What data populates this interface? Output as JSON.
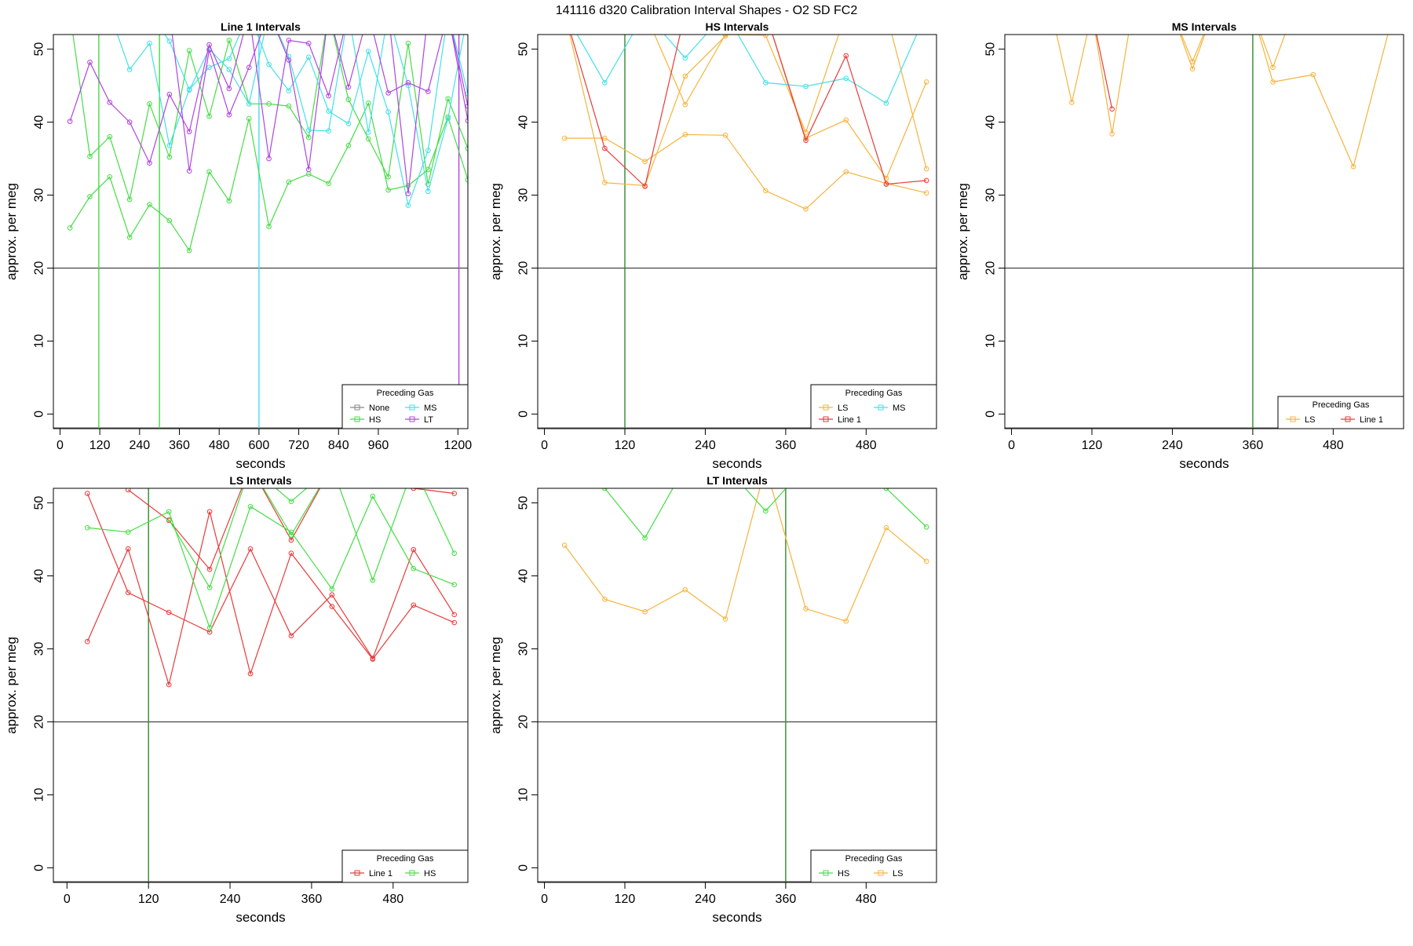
{
  "figure_title": "141116   d320   Calibration Interval Shapes - O2 SD FC2",
  "colors": {
    "None": "#888888",
    "HS": "#44dd44",
    "MS": "#44e0e8",
    "LT": "#b044e0",
    "LS": "#f5b43c",
    "Line 1": "#e83a3a",
    "HS_vline": "#2e8b2e",
    "axis": "#000000",
    "hline": "#444444"
  },
  "chart_data": [
    {
      "id": "line1",
      "type": "line",
      "title": "Line 1 Intervals",
      "xlabel": "seconds",
      "ylabel": "approx. per meg",
      "xlim": [
        -20,
        1230
      ],
      "ylim": [
        -2,
        52
      ],
      "xticks": [
        0,
        120,
        240,
        360,
        480,
        600,
        720,
        840,
        960,
        1200
      ],
      "yticks": [
        0,
        10,
        20,
        30,
        40,
        50
      ],
      "hline": 20,
      "vlines": [
        {
          "x": 117,
          "gas": "HS"
        },
        {
          "x": 300,
          "gas": "HS"
        },
        {
          "x": 600,
          "gas": "MS"
        },
        {
          "x": 1203,
          "gas": "LT"
        }
      ],
      "legend": {
        "title": "Preceding Gas",
        "position": "bottom-right",
        "ncol": 2,
        "entries": [
          "None",
          "MS",
          "HS",
          "LT"
        ]
      },
      "series": [
        {
          "name": "HS",
          "x": [
            30,
            90,
            150,
            210,
            270,
            330,
            390,
            450,
            510,
            570,
            630,
            690,
            750,
            810,
            870,
            930,
            990,
            1050,
            1110,
            1170,
            1230
          ],
          "y": [
            25.5,
            29.8,
            32.5,
            24.2,
            28.7,
            26.5,
            22.4,
            33.2,
            29.2,
            40.5,
            25.7,
            31.8,
            32.9,
            31.6,
            36.8,
            42.6,
            30.7,
            31.3,
            33.5,
            40.7,
            32.1
          ]
        },
        {
          "name": "HS",
          "x": [
            30,
            90,
            150,
            210,
            270,
            330,
            390,
            450,
            510,
            570,
            630,
            690,
            750,
            810,
            870,
            930,
            990,
            1050,
            1110,
            1170,
            1230
          ],
          "y": [
            55,
            35.3,
            38.0,
            29.4,
            42.5,
            35.2,
            49.8,
            40.8,
            51.2,
            42.5,
            42.5,
            42.2,
            37.9,
            55,
            43.1,
            37.7,
            32.5,
            50.8,
            31.5,
            43.2,
            36.4
          ]
        },
        {
          "name": "MS",
          "x": [
            150,
            210,
            270,
            330,
            390,
            450,
            510,
            570,
            630,
            690,
            750,
            810,
            870,
            930,
            990,
            1050,
            1110,
            1170,
            1230
          ],
          "y": [
            55,
            47.2,
            50.8,
            36.8,
            44.5,
            47.5,
            48.7,
            55,
            47.9,
            44.3,
            48.9,
            41.5,
            39.8,
            49.7,
            41.4,
            28.6,
            36.1,
            55,
            43.9
          ]
        },
        {
          "name": "MS",
          "x": [
            270,
            330,
            390,
            450,
            510,
            570,
            630,
            690,
            750,
            810,
            870,
            930,
            990,
            1050,
            1110,
            1170,
            1230
          ],
          "y": [
            55,
            51.1,
            44.4,
            50.0,
            47.2,
            42.5,
            55,
            49.0,
            38.9,
            38.8,
            55,
            38.6,
            55,
            45.0,
            30.5,
            40.5,
            55
          ]
        },
        {
          "name": "LT",
          "x": [
            30,
            90,
            150,
            210,
            270,
            330,
            390,
            450,
            510,
            570,
            630,
            690,
            750,
            810,
            870,
            930,
            990,
            1050,
            1110,
            1170,
            1230
          ],
          "y": [
            40.1,
            48.2,
            42.7,
            40.0,
            34.4,
            43.8,
            38.7,
            50.6,
            44.6,
            55,
            35.0,
            51.2,
            50.8,
            43.6,
            55,
            55,
            44.0,
            45.4,
            44.2,
            55,
            42.2
          ]
        },
        {
          "name": "LT",
          "x": [
            330,
            390,
            450,
            510,
            570,
            630,
            690,
            750,
            810,
            870,
            930,
            990,
            1050,
            1110,
            1170,
            1230
          ],
          "y": [
            55,
            33.3,
            49.9,
            41.0,
            47.5,
            55,
            48.5,
            33.5,
            55,
            44.8,
            55,
            55,
            30.2,
            55,
            55,
            40.2
          ]
        }
      ]
    },
    {
      "id": "hs",
      "type": "line",
      "title": "HS Intervals",
      "xlabel": "seconds",
      "ylabel": "approx. per meg",
      "xlim": [
        -10,
        585
      ],
      "ylim": [
        -2,
        52
      ],
      "xticks": [
        0,
        120,
        240,
        360,
        480
      ],
      "yticks": [
        0,
        10,
        20,
        30,
        40,
        50
      ],
      "hline": 20,
      "vlines": [
        {
          "x": 120,
          "gas": "HS_vline"
        }
      ],
      "legend": {
        "title": "Preceding Gas",
        "position": "bottom-right",
        "ncol": 2,
        "entries": [
          "LS",
          "MS",
          "Line 1"
        ]
      },
      "series": [
        {
          "name": "LS",
          "x": [
            30,
            90,
            150,
            210,
            270,
            330,
            390,
            450,
            510,
            570
          ],
          "y": [
            37.8,
            37.8,
            34.6,
            38.3,
            38.2,
            30.6,
            28.1,
            33.2,
            31.6,
            30.3
          ]
        },
        {
          "name": "LS",
          "x": [
            30,
            90,
            150,
            210,
            270,
            330,
            390,
            450,
            510,
            570
          ],
          "y": [
            55,
            31.7,
            31.3,
            46.3,
            51.8,
            55,
            37.8,
            40.3,
            32.3,
            45.5
          ]
        },
        {
          "name": "LS",
          "x": [
            150,
            210,
            270,
            330,
            390,
            450,
            510,
            570
          ],
          "y": [
            55,
            42.4,
            52.0,
            51.9,
            38.6,
            55,
            55,
            33.6
          ]
        },
        {
          "name": "MS",
          "x": [
            30,
            90,
            150,
            210,
            270,
            330,
            390,
            450,
            510,
            570
          ],
          "y": [
            55,
            45.4,
            55,
            48.8,
            55,
            45.4,
            44.9,
            46.0,
            42.6,
            55
          ]
        },
        {
          "name": "Line 1",
          "x": [
            30,
            90,
            150,
            210,
            270,
            330,
            390,
            450,
            510,
            570
          ],
          "y": [
            55,
            36.4,
            31.2,
            55,
            55,
            55,
            37.5,
            49.1,
            31.5,
            32.0
          ]
        }
      ]
    },
    {
      "id": "ms",
      "type": "line",
      "title": "MS Intervals",
      "xlabel": "seconds",
      "ylabel": "approx. per meg",
      "xlim": [
        -10,
        585
      ],
      "ylim": [
        -2,
        52
      ],
      "xticks": [
        0,
        120,
        240,
        360,
        480
      ],
      "yticks": [
        0,
        10,
        20,
        30,
        40,
        50
      ],
      "hline": 20,
      "vlines": [
        {
          "x": 360,
          "gas": "HS_vline"
        }
      ],
      "legend": {
        "title": "Preceding Gas",
        "position": "bottom-right",
        "ncol": 2,
        "entries": [
          "LS",
          "Line 1"
        ]
      },
      "series": [
        {
          "name": "LS",
          "x": [
            60,
            90,
            120,
            150,
            180,
            240,
            270,
            300,
            360,
            390,
            450,
            510,
            570
          ],
          "y": [
            55,
            42.7,
            55,
            38.4,
            55,
            55,
            47.3,
            55,
            55,
            45.5,
            46.5,
            33.9,
            55
          ]
        },
        {
          "name": "LS",
          "x": [
            240,
            270,
            300,
            360,
            390,
            420,
            450
          ],
          "y": [
            55,
            48.3,
            55,
            55,
            47.5,
            55,
            55
          ]
        },
        {
          "name": "Line 1",
          "x": [
            120,
            150
          ],
          "y": [
            55,
            41.8
          ]
        }
      ]
    },
    {
      "id": "ls",
      "type": "line",
      "title": "LS Intervals",
      "xlabel": "seconds",
      "ylabel": "approx. per meg",
      "xlim": [
        -20,
        590
      ],
      "ylim": [
        -2,
        52
      ],
      "xticks": [
        0,
        120,
        240,
        360,
        480
      ],
      "yticks": [
        0,
        10,
        20,
        30,
        40,
        50
      ],
      "hline": 20,
      "vlines": [
        {
          "x": 120,
          "gas": "HS_vline"
        }
      ],
      "legend": {
        "title": "Preceding Gas",
        "position": "bottom-right",
        "ncol": 2,
        "entries": [
          "Line 1",
          "HS"
        ]
      },
      "series": [
        {
          "name": "Line 1",
          "x": [
            30,
            90,
            150,
            210,
            270,
            330,
            390,
            450,
            510,
            570
          ],
          "y": [
            31.0,
            43.7,
            25.1,
            48.8,
            26.6,
            43.1,
            35.8,
            28.6,
            36.0,
            33.6
          ]
        },
        {
          "name": "Line 1",
          "x": [
            30,
            90,
            150,
            210,
            270,
            330,
            390,
            450,
            510,
            570
          ],
          "y": [
            51.3,
            37.7,
            35.0,
            32.3,
            43.7,
            31.8,
            37.4,
            28.7,
            43.6,
            34.7
          ]
        },
        {
          "name": "Line 1",
          "x": [
            90,
            150,
            210,
            270,
            330,
            390,
            450,
            510,
            570
          ],
          "y": [
            51.8,
            47.6,
            40.9,
            55,
            44.9,
            55,
            55,
            52.0,
            51.3
          ]
        },
        {
          "name": "HS",
          "x": [
            30,
            90,
            150,
            210,
            270,
            330,
            390,
            450,
            510,
            570
          ],
          "y": [
            46.6,
            46.0,
            48.8,
            32.9,
            49.5,
            46.0,
            38.2,
            50.9,
            41.0,
            38.8
          ]
        },
        {
          "name": "HS",
          "x": [
            150,
            210,
            270,
            330,
            390,
            450,
            510,
            570
          ],
          "y": [
            47.7,
            38.4,
            55,
            45.6,
            55,
            39.4,
            55,
            43.1
          ]
        },
        {
          "name": "HS",
          "x": [
            270,
            330,
            390
          ],
          "y": [
            55,
            50.2,
            55
          ]
        }
      ]
    },
    {
      "id": "lt",
      "type": "line",
      "title": "LT Intervals",
      "xlabel": "seconds",
      "ylabel": "approx. per meg",
      "xlim": [
        -10,
        585
      ],
      "ylim": [
        -2,
        52
      ],
      "xticks": [
        0,
        120,
        240,
        360,
        480
      ],
      "yticks": [
        0,
        10,
        20,
        30,
        40,
        50
      ],
      "hline": 20,
      "vlines": [
        {
          "x": 360,
          "gas": "HS_vline"
        }
      ],
      "legend": {
        "title": "Preceding Gas",
        "position": "bottom-right",
        "ncol": 2,
        "entries": [
          "HS",
          "LS"
        ]
      },
      "series": [
        {
          "name": "LS",
          "x": [
            30,
            90,
            150,
            210,
            270,
            330,
            390,
            450,
            510,
            570
          ],
          "y": [
            44.2,
            36.8,
            35.1,
            38.1,
            34.1,
            55,
            35.5,
            33.8,
            46.6,
            42.0
          ]
        },
        {
          "name": "HS",
          "x": [
            90,
            150,
            210,
            270,
            330,
            390,
            450,
            510,
            570
          ],
          "y": [
            52.0,
            45.2,
            55,
            55,
            48.9,
            55,
            55,
            52.0,
            46.7
          ]
        }
      ]
    }
  ]
}
